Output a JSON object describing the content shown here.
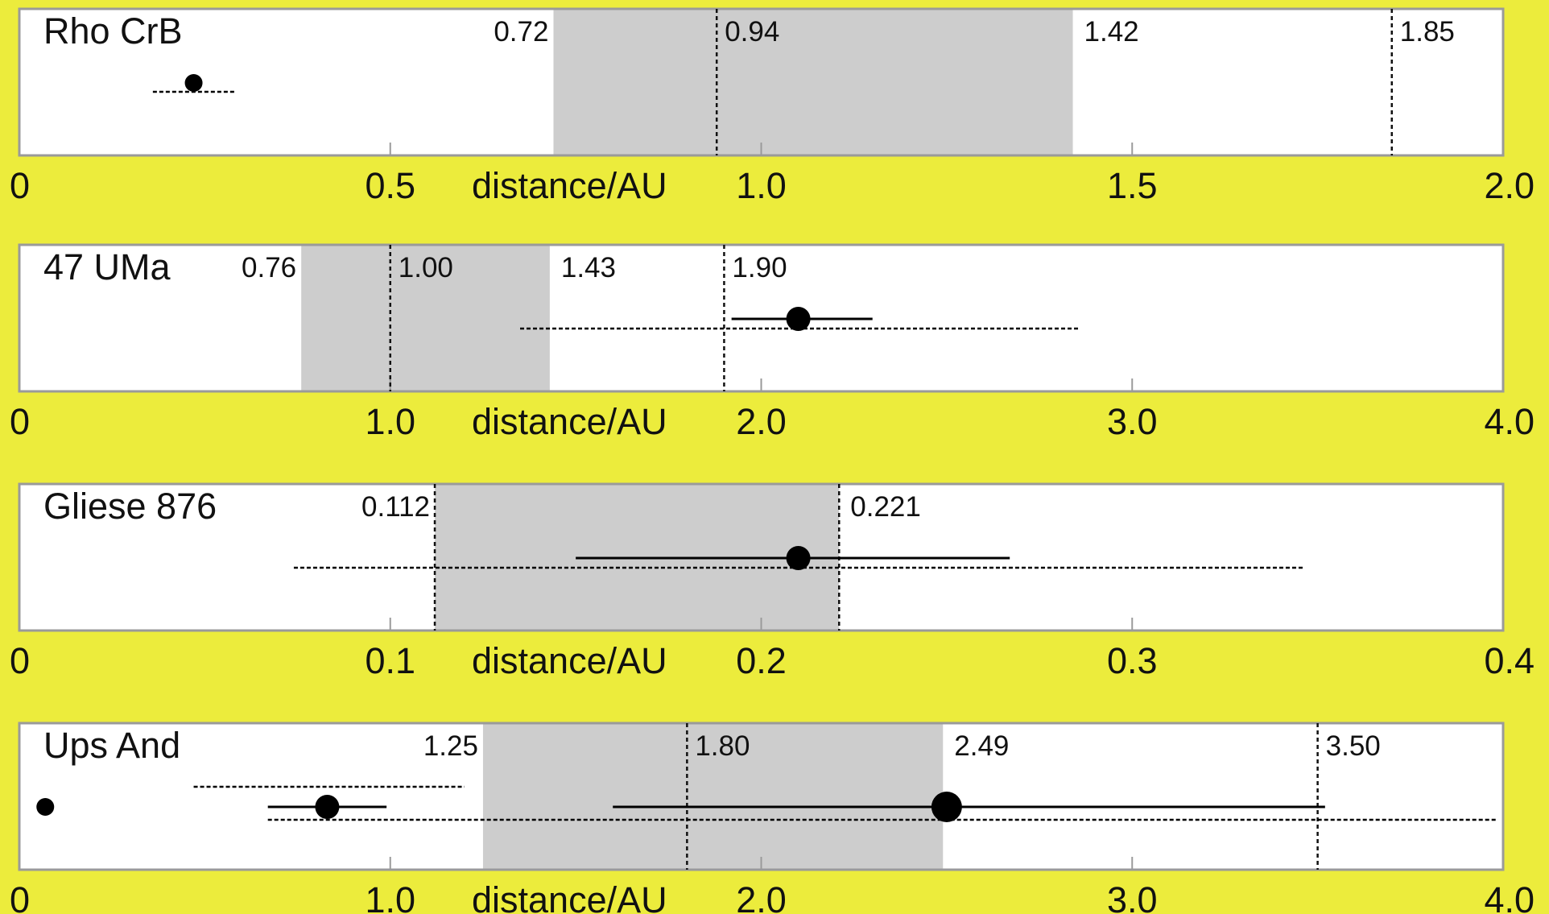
{
  "chart_data": [
    {
      "type": "scatter",
      "title": "Rho CrB",
      "xlabel": "distance/AU",
      "xlim": [
        0,
        2.0
      ],
      "ticks": [
        0,
        0.5,
        1.0,
        1.5,
        2.0
      ],
      "tick_labels": [
        "0",
        "0.5",
        "1.0",
        "1.5",
        "2.0"
      ],
      "shaded_zone": [
        0.72,
        1.42
      ],
      "shaded_zone_labels": [
        "0.72",
        "1.42"
      ],
      "vertical_lines": [
        {
          "x": 0.94,
          "label": "0.94"
        },
        {
          "x": 1.85,
          "label": "1.85"
        }
      ],
      "planets": [
        {
          "x": 0.235,
          "size": "small",
          "errorbars": [
            {
              "lo": 0.18,
              "hi": 0.29,
              "style": "dashed"
            }
          ]
        }
      ]
    },
    {
      "type": "scatter",
      "title": "47 UMa",
      "xlabel": "distance/AU",
      "xlim": [
        0,
        4.0
      ],
      "ticks": [
        0,
        1.0,
        2.0,
        3.0,
        4.0
      ],
      "tick_labels": [
        "0",
        "1.0",
        "2.0",
        "3.0",
        "4.0"
      ],
      "shaded_zone": [
        0.76,
        1.43
      ],
      "shaded_zone_labels": [
        "0.76",
        "1.43"
      ],
      "vertical_lines": [
        {
          "x": 1.0,
          "label": "1.00"
        },
        {
          "x": 1.9,
          "label": "1.90"
        }
      ],
      "planets": [
        {
          "x": 2.1,
          "size": "large",
          "errorbars": [
            {
              "lo": 1.92,
              "hi": 2.3,
              "style": "solid"
            },
            {
              "lo": 1.35,
              "hi": 2.86,
              "style": "dashed"
            }
          ]
        }
      ]
    },
    {
      "type": "scatter",
      "title": "Gliese 876",
      "xlabel": "distance/AU",
      "xlim": [
        0,
        0.4
      ],
      "ticks": [
        0,
        0.1,
        0.2,
        0.3,
        0.4
      ],
      "tick_labels": [
        "0",
        "0.1",
        "0.2",
        "0.3",
        "0.4"
      ],
      "shaded_zone": [
        0.112,
        0.221
      ],
      "shaded_zone_labels": [
        "0.112",
        "0.221"
      ],
      "vertical_lines": [
        {
          "x": 0.112,
          "label": ""
        },
        {
          "x": 0.221,
          "label": ""
        }
      ],
      "planets": [
        {
          "x": 0.21,
          "size": "large",
          "errorbars": [
            {
              "lo": 0.15,
              "hi": 0.267,
              "style": "solid"
            },
            {
              "lo": 0.074,
              "hi": 0.346,
              "style": "dashed"
            }
          ]
        }
      ]
    },
    {
      "type": "scatter",
      "title": "Ups And",
      "xlabel": "distance/AU",
      "xlim": [
        0,
        4.0
      ],
      "ticks": [
        0,
        1.0,
        2.0,
        3.0,
        4.0
      ],
      "tick_labels": [
        "0",
        "1.0",
        "2.0",
        "3.0",
        "4.0"
      ],
      "shaded_zone": [
        1.25,
        2.49
      ],
      "shaded_zone_labels": [
        "1.25",
        "2.49"
      ],
      "vertical_lines": [
        {
          "x": 1.8,
          "label": "1.80"
        },
        {
          "x": 3.5,
          "label": "3.50"
        }
      ],
      "planets": [
        {
          "x": 0.07,
          "size": "small",
          "errorbars": []
        },
        {
          "x": 0.83,
          "size": "large",
          "errorbars": [
            {
              "lo": 0.67,
              "hi": 0.99,
              "style": "solid"
            },
            {
              "lo": 0.47,
              "hi": 1.2,
              "style": "dashed"
            }
          ]
        },
        {
          "x": 2.5,
          "size": "xlarge",
          "errorbars": [
            {
              "lo": 1.6,
              "hi": 3.52,
              "style": "solid"
            },
            {
              "lo": 0.67,
              "hi": 3.98,
              "style": "dashed"
            }
          ]
        }
      ]
    }
  ]
}
